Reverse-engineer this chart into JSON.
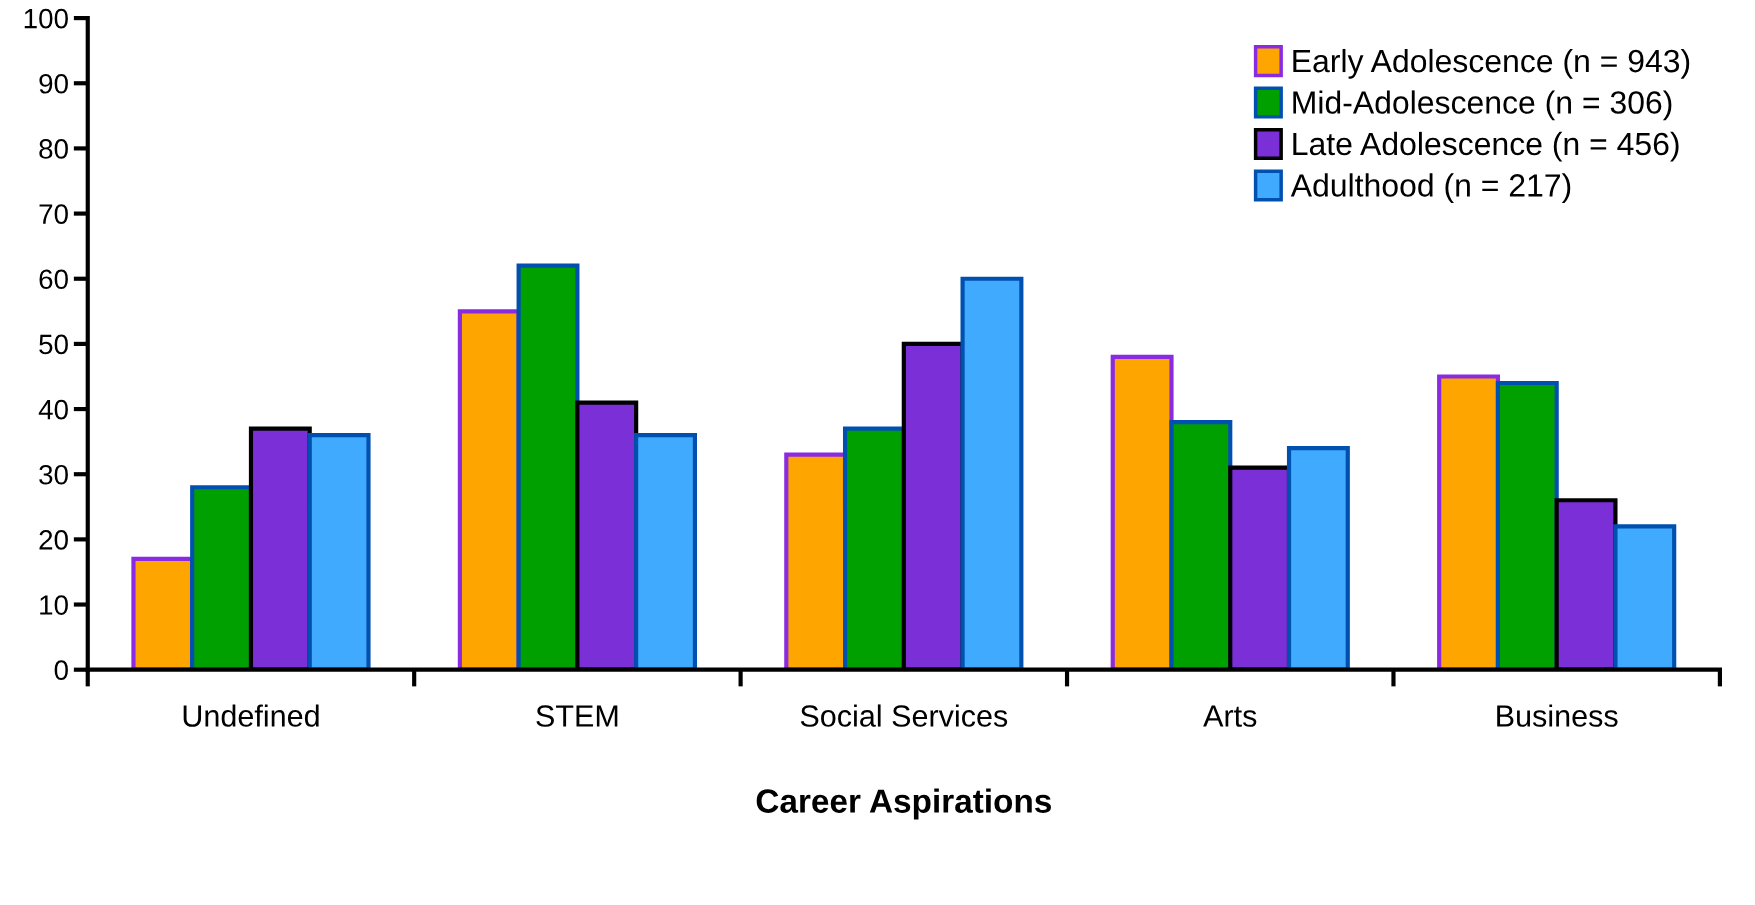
{
  "chart_data": {
    "type": "bar",
    "xlabel": "Career Aspirations",
    "categories": [
      "Undefined",
      "STEM",
      "Social Services",
      "Arts",
      "Business"
    ],
    "series": [
      {
        "name": "Early Adolescence (n = 943)",
        "color": "#ffa500",
        "values": [
          17,
          55,
          33,
          48,
          45
        ]
      },
      {
        "name": "Mid-Adolescence (n = 306)",
        "color": "#00a000",
        "values": [
          28,
          62,
          37,
          38,
          44
        ]
      },
      {
        "name": "Late Adolescence (n = 456)",
        "color": "#7b2fd6",
        "values": [
          37,
          41,
          50,
          31,
          26
        ]
      },
      {
        "name": "Adulthood (n = 217)",
        "color": "#40aaff",
        "values": [
          36,
          36,
          60,
          34,
          22
        ]
      }
    ],
    "ylim": [
      0,
      100
    ],
    "yticks": [
      0,
      10,
      20,
      30,
      40,
      50,
      60,
      70,
      80,
      90,
      100
    ],
    "grid": false,
    "legend": "top right"
  }
}
